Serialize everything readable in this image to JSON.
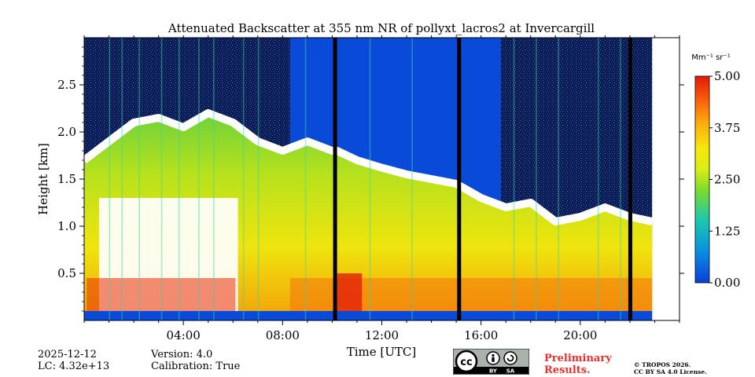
{
  "chart_data": {
    "type": "heatmap",
    "title": "Attenuated Backscatter at 355 nm NR of pollyxt_lacros2 at Invercargill",
    "xlabel": "Time [UTC]",
    "ylabel": "Height [km]",
    "xlim": [
      0,
      24
    ],
    "ylim": [
      0,
      3.0
    ],
    "x_ticks": [
      4,
      8,
      12,
      16,
      20
    ],
    "x_tick_labels": [
      "04:00",
      "08:00",
      "12:00",
      "16:00",
      "20:00"
    ],
    "y_ticks": [
      0.5,
      1.0,
      1.5,
      2.0,
      2.5
    ],
    "y_tick_labels": [
      "0.5",
      "1.0",
      "1.5",
      "2.0",
      "2.5"
    ],
    "data_end_hour": 22.9,
    "gap_hours": [
      10.1,
      15.1,
      22.0
    ],
    "colorbar": {
      "label": "Mm⁻¹ sr⁻¹",
      "range": [
        0.0,
        5.0
      ],
      "ticks": [
        0.0,
        1.25,
        2.5,
        3.75,
        5.0
      ],
      "tick_labels": [
        "0.00",
        "1.25",
        "2.50",
        "3.75",
        "5.00"
      ],
      "colormap": "jet"
    },
    "cloud_top_km": [
      [
        0,
        1.7
      ],
      [
        1,
        1.9
      ],
      [
        2,
        2.1
      ],
      [
        3,
        2.15
      ],
      [
        4,
        2.05
      ],
      [
        5,
        2.2
      ],
      [
        6,
        2.1
      ],
      [
        7,
        1.9
      ],
      [
        8,
        1.8
      ],
      [
        9,
        1.9
      ],
      [
        10,
        1.8
      ],
      [
        10.2,
        1.8
      ],
      [
        11,
        1.7
      ],
      [
        12,
        1.62
      ],
      [
        13,
        1.55
      ],
      [
        14,
        1.5
      ],
      [
        15,
        1.45
      ],
      [
        16,
        1.3
      ],
      [
        17,
        1.2
      ],
      [
        18,
        1.25
      ],
      [
        19,
        1.05
      ],
      [
        20,
        1.1
      ],
      [
        21,
        1.2
      ],
      [
        22,
        1.1
      ],
      [
        22.9,
        1.05
      ]
    ]
  },
  "metadata": {
    "date": "2025-12-12",
    "lc": "LC: 4.32e+13",
    "version": "Version: 4.0",
    "calibration": "Calibration: True"
  },
  "footer": {
    "preliminary_line1": "Preliminary",
    "preliminary_line2": "Results.",
    "copyright_line1": "© TROPOS 2026.",
    "copyright_line2": "CC BY SA 4.0 License.",
    "cc_text": "cc",
    "by_text": "BY",
    "sa_text": "SA"
  }
}
